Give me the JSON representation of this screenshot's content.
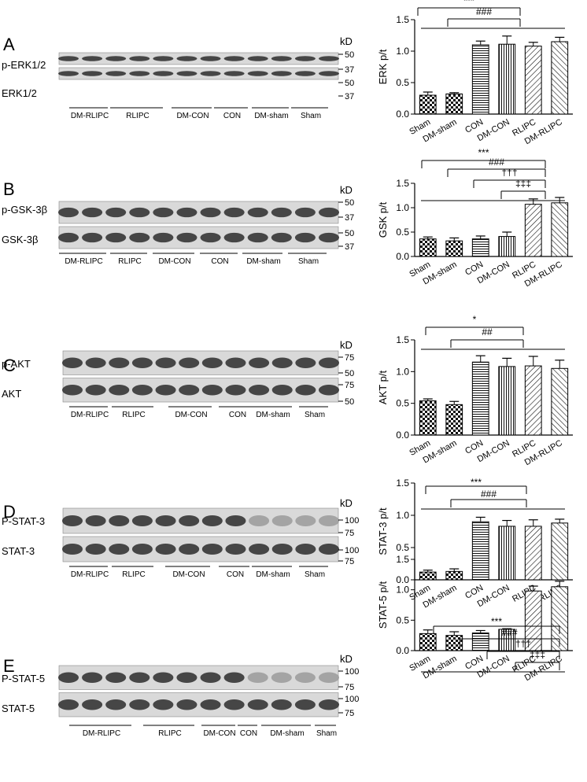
{
  "panels": [
    {
      "letter": "A",
      "rows": [
        "p-ERK1/2",
        "ERK1/2"
      ],
      "kd": "kD",
      "mw": [
        [
          "50",
          "37"
        ],
        [
          "50",
          "37"
        ]
      ],
      "lanes": [
        "DM-RLIPC",
        "RLIPC",
        "DM-CON",
        "CON",
        "DM-sham",
        "Sham"
      ]
    },
    {
      "letter": "B",
      "rows": [
        "p-GSK-3β",
        "GSK-3β"
      ],
      "kd": "kD",
      "mw": [
        [
          "50",
          "37"
        ],
        [
          "50",
          "37"
        ]
      ],
      "lanes": [
        "DM-RLIPC",
        "RLIPC",
        "DM-CON",
        "CON",
        "DM-sham",
        "Sham"
      ]
    },
    {
      "letter": "C",
      "rows": [
        "p-AKT",
        "AKT"
      ],
      "kd": "kD",
      "mw": [
        [
          "75",
          "50"
        ],
        [
          "75",
          "50"
        ]
      ],
      "lanes": [
        "DM-RLIPC",
        "RLIPC",
        "DM-CON",
        "CON",
        "DM-sham",
        "Sham"
      ]
    },
    {
      "letter": "D",
      "rows": [
        "P-STAT-3",
        "STAT-3"
      ],
      "kd": "kD",
      "mw": [
        [
          "100",
          "75"
        ],
        [
          "100",
          "75"
        ]
      ],
      "lanes": [
        "DM-RLIPC",
        "RLIPC",
        "DM-CON",
        "CON",
        "DM-sham",
        "Sham"
      ]
    },
    {
      "letter": "E",
      "rows": [
        "P-STAT-5",
        "STAT-5"
      ],
      "kd": "kD",
      "mw": [
        [
          "100",
          "75"
        ],
        [
          "100",
          "75"
        ]
      ],
      "lanes": [
        "DM-RLIPC",
        "RLIPC",
        "DM-CON",
        "CON",
        "DM-sham",
        "Sham"
      ]
    }
  ],
  "chart_data": [
    {
      "type": "bar",
      "ylabel": "ERK  p/t",
      "categories": [
        "Sham",
        "DM-sham",
        "CON",
        "DM-CON",
        "RLIPC",
        "DM-RLIPC"
      ],
      "values": [
        0.3,
        0.32,
        1.1,
        1.11,
        1.08,
        1.15
      ],
      "errors": [
        0.05,
        0.02,
        0.06,
        0.13,
        0.06,
        0.07
      ],
      "ylim": [
        0,
        1.5
      ],
      "yticks": [
        "0.0",
        "0.5",
        "1.0",
        "1.5"
      ],
      "significance": [
        "***",
        "###"
      ]
    },
    {
      "type": "bar",
      "ylabel": "GSK p/t",
      "categories": [
        "Sham",
        "DM-sham",
        "CON",
        "DM-CON",
        "RLIPC",
        "DM-RLIPC"
      ],
      "values": [
        0.36,
        0.32,
        0.36,
        0.41,
        1.07,
        1.1
      ],
      "errors": [
        0.04,
        0.06,
        0.06,
        0.09,
        0.11,
        0.11
      ],
      "ylim": [
        0,
        1.5
      ],
      "yticks": [
        "0.0",
        "0.5",
        "1.0",
        "1.5"
      ],
      "significance": [
        "***",
        "###",
        "†††",
        "‡‡‡"
      ]
    },
    {
      "type": "bar",
      "ylabel": "AKT p/t",
      "categories": [
        "Sham",
        "DM-sham",
        "CON",
        "DM-CON",
        "RLIPC",
        "DM-RLIPC"
      ],
      "values": [
        0.54,
        0.48,
        1.15,
        1.08,
        1.09,
        1.05
      ],
      "errors": [
        0.03,
        0.05,
        0.1,
        0.13,
        0.15,
        0.13
      ],
      "ylim": [
        0,
        1.5
      ],
      "yticks": [
        "0.0",
        "0.5",
        "1.0",
        "1.5"
      ],
      "significance": [
        "*",
        "##"
      ]
    },
    {
      "type": "bar",
      "ylabel": "STAT-3 p/t",
      "categories": [
        "Sham",
        "DM-sham",
        "CON",
        "DM-CON",
        "RLIPC",
        "DM-RLIPC"
      ],
      "values": [
        0.12,
        0.13,
        0.9,
        0.83,
        0.83,
        0.88
      ],
      "errors": [
        0.03,
        0.04,
        0.07,
        0.09,
        0.1,
        0.06
      ],
      "ylim": [
        0,
        1.5
      ],
      "yticks": [
        "0.0",
        "0.5",
        "1.0",
        "1.5"
      ],
      "significance": [
        "***",
        "###"
      ]
    },
    {
      "type": "bar",
      "ylabel": "STAT-5 p/t",
      "categories": [
        "Sham",
        "DM-sham",
        "CON",
        "DM-CON",
        "RLIPC",
        "DM-RLIPC"
      ],
      "values": [
        0.28,
        0.25,
        0.29,
        0.35,
        0.98,
        1.05
      ],
      "errors": [
        0.06,
        0.06,
        0.04,
        0.01,
        0.08,
        0.09
      ],
      "ylim": [
        0,
        1.5
      ],
      "yticks": [
        "0.0",
        "0.5",
        "1.0",
        "1.5"
      ],
      "significance": [
        "***",
        "###",
        "†††",
        "‡‡‡"
      ]
    }
  ]
}
